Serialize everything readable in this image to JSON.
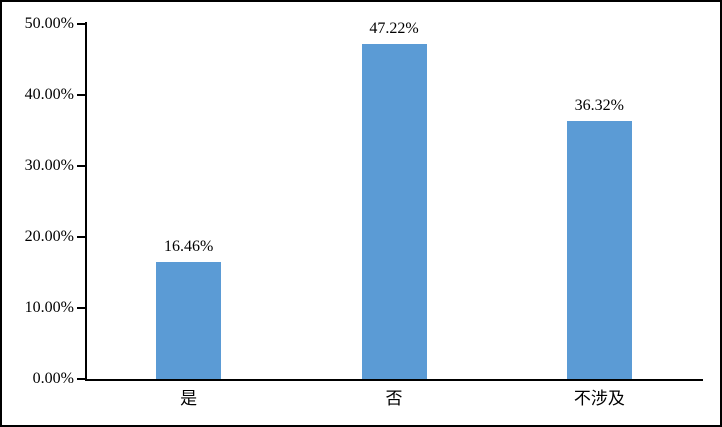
{
  "chart_data": {
    "type": "bar",
    "title": "",
    "categories": [
      "是",
      "否",
      "不涉及"
    ],
    "values": [
      16.46,
      47.22,
      36.32
    ],
    "value_labels": [
      "16.46%",
      "47.22%",
      "36.32%"
    ],
    "series": [
      {
        "name": "",
        "values": [
          16.46,
          47.22,
          36.32
        ]
      }
    ],
    "xlabel": "",
    "ylabel": "",
    "ylim": [
      0,
      50
    ],
    "yticks": [
      {
        "value": 0,
        "label": "0.00%"
      },
      {
        "value": 10,
        "label": "10.00%"
      },
      {
        "value": 20,
        "label": "20.00%"
      },
      {
        "value": 30,
        "label": "30.00%"
      },
      {
        "value": 40,
        "label": "40.00%"
      },
      {
        "value": 50,
        "label": "50.00%"
      }
    ],
    "grid": false,
    "legend_position": "none",
    "bar_color": "#5B9BD5",
    "axis_color": "#000000",
    "text_color": "#000000",
    "background_color": "#FFFFFF"
  }
}
